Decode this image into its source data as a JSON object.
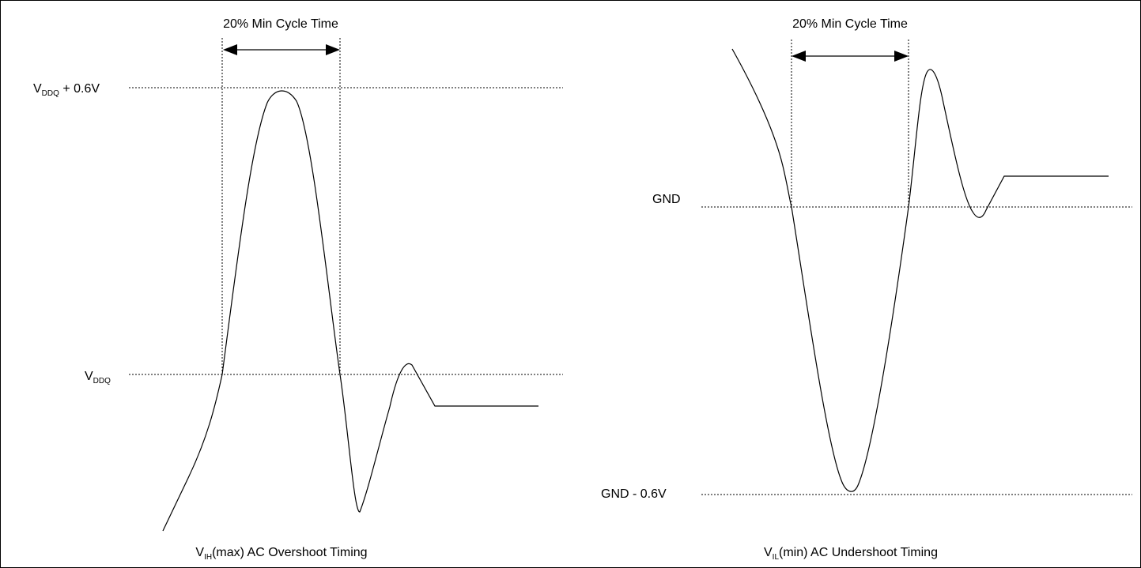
{
  "left": {
    "measure_label": "20% Min Cycle Time",
    "level_top": {
      "main": "V",
      "sub": "DDQ",
      "suffix": " + 0.6V"
    },
    "level_mid": {
      "main": "V",
      "sub": "DDQ",
      "suffix": ""
    },
    "caption": {
      "main": "V",
      "sub": "IH",
      "suffix": "(max) AC Overshoot Timing"
    }
  },
  "right": {
    "measure_label": "20% Min Cycle Time",
    "level_top": "GND",
    "level_bottom": "GND - 0.6V",
    "caption": {
      "main": "V",
      "sub": "IL",
      "suffix": "(min) AC Undershoot Timing"
    }
  }
}
